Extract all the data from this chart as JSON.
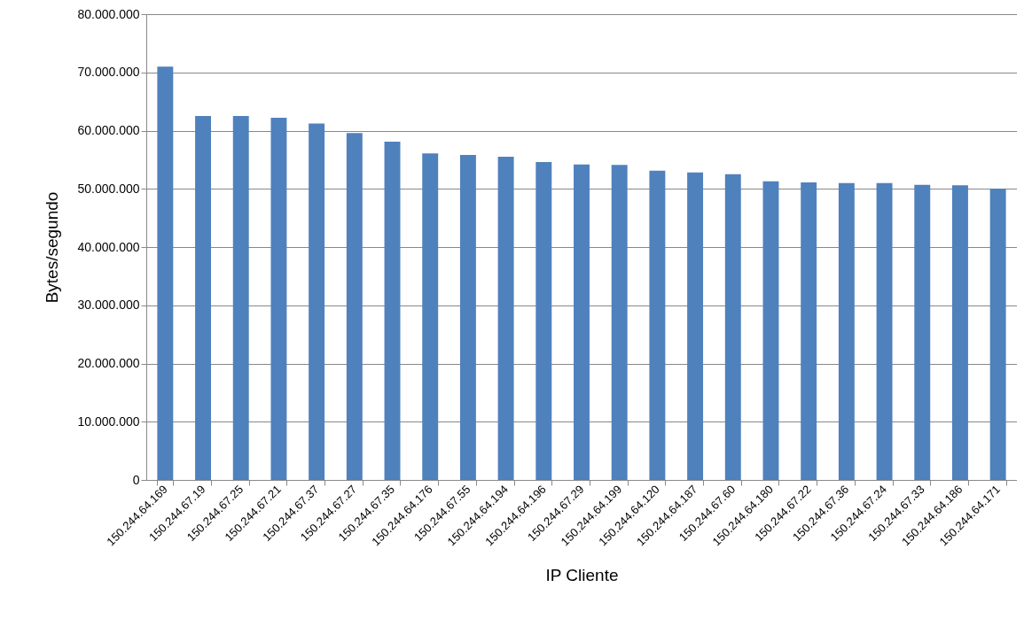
{
  "chart_data": {
    "type": "bar",
    "xlabel": "IP Cliente",
    "ylabel": "Bytes/segundo",
    "categories": [
      "150.244.64.169",
      "150.244.67.19",
      "150.244.67.25",
      "150.244.67.21",
      "150.244.67.37",
      "150.244.67.27",
      "150.244.67.35",
      "150.244.64.176",
      "150.244.67.55",
      "150.244.64.194",
      "150.244.64.196",
      "150.244.67.29",
      "150.244.64.199",
      "150.244.64.120",
      "150.244.64.187",
      "150.244.67.60",
      "150.244.64.180",
      "150.244.67.22",
      "150.244.67.36",
      "150.244.67.24",
      "150.244.67.33",
      "150.244.64.186",
      "150.244.64.171"
    ],
    "values": [
      71000000,
      62500000,
      62500000,
      62200000,
      61200000,
      59600000,
      58100000,
      56100000,
      55800000,
      55500000,
      54600000,
      54200000,
      54100000,
      53100000,
      52800000,
      52500000,
      51300000,
      51100000,
      51000000,
      51000000,
      50700000,
      50600000,
      50000000
    ],
    "color": "#4f81bd",
    "ylim": [
      0,
      80000000
    ],
    "yticks": [
      0,
      {
        "value": 10000000,
        "label": "10.000.000"
      },
      {
        "value": 20000000,
        "label": "20.000.000"
      },
      {
        "value": 30000000,
        "label": "30.000.000"
      },
      {
        "value": 40000000,
        "label": "40.000.000"
      },
      {
        "value": 50000000,
        "label": "50.000.000"
      },
      {
        "value": 60000000,
        "label": "60.000.000"
      },
      {
        "value": 70000000,
        "label": "70.000.000"
      },
      {
        "value": 80000000,
        "label": "80.000.000"
      }
    ],
    "grid": "y"
  }
}
